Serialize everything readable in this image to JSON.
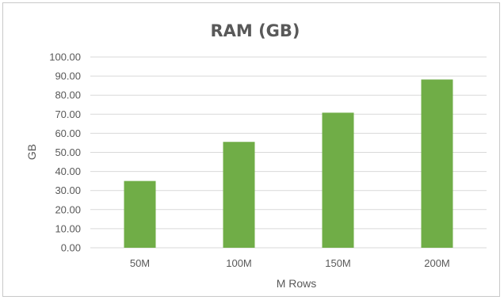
{
  "chart_data": {
    "type": "bar",
    "title": "RAM (GB)",
    "xlabel": "M Rows",
    "ylabel": "GB",
    "categories": [
      "50M",
      "100M",
      "150M",
      "200M"
    ],
    "values": [
      35.0,
      55.5,
      70.8,
      88.2
    ],
    "ylim": [
      0,
      100
    ],
    "y_ticks": [
      "0.00",
      "10.00",
      "20.00",
      "30.00",
      "40.00",
      "50.00",
      "60.00",
      "70.00",
      "80.00",
      "90.00",
      "100.00"
    ],
    "grid": true,
    "legend": "none",
    "bar_color": "#70ad47",
    "grid_color": "#d9d9d9"
  }
}
